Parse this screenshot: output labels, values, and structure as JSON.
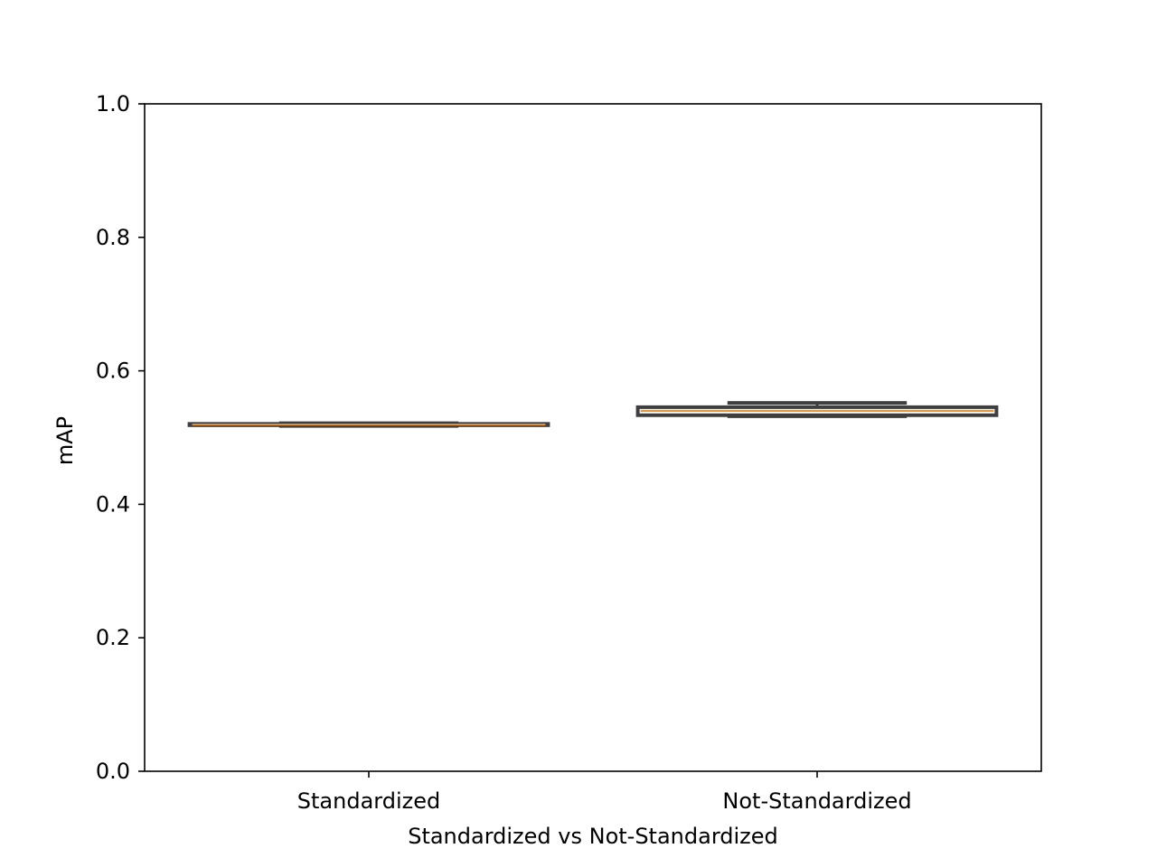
{
  "chart_data": {
    "type": "box",
    "title": "",
    "xlabel": "Standardized vs Not-Standardized",
    "ylabel": "mAP",
    "ylim": [
      0.0,
      1.0
    ],
    "y_ticks": [
      {
        "value": 0.0,
        "label": "0.0"
      },
      {
        "value": 0.2,
        "label": "0.2"
      },
      {
        "value": 0.4,
        "label": "0.4"
      },
      {
        "value": 0.6,
        "label": "0.6"
      },
      {
        "value": 0.8,
        "label": "0.8"
      },
      {
        "value": 1.0,
        "label": "1.0"
      }
    ],
    "grid": false,
    "legend": "none",
    "categories": [
      "Standardized",
      "Not-Standardized"
    ],
    "boxes": [
      {
        "category": "Standardized",
        "whisker_low": 0.5175,
        "q1": 0.5185,
        "median": 0.5195,
        "q3": 0.5205,
        "whisker_high": 0.5215
      },
      {
        "category": "Not-Standardized",
        "whisker_low": 0.532,
        "q1": 0.5335,
        "median": 0.54,
        "q3": 0.5455,
        "whisker_high": 0.552
      }
    ],
    "colors": {
      "box": "#3f3f3f",
      "median": "#e8943a",
      "axes": "#000000"
    }
  }
}
